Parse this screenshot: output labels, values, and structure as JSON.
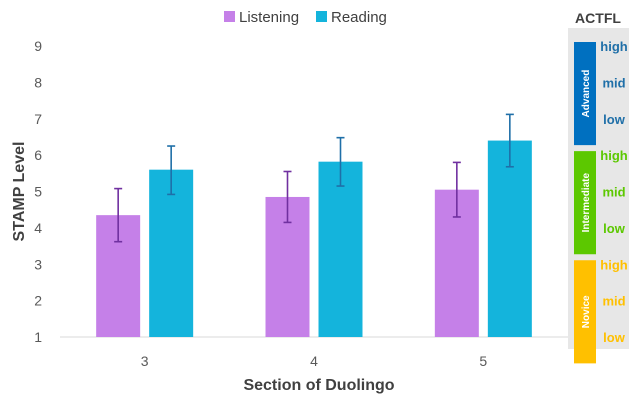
{
  "chart_data": {
    "type": "bar",
    "title": "",
    "xlabel": "Section of Duolingo",
    "ylabel": "STAMP Level",
    "categories": [
      "3",
      "4",
      "5"
    ],
    "ylim": [
      1,
      9
    ],
    "yticks": [
      1,
      2,
      3,
      4,
      5,
      6,
      7,
      8,
      9
    ],
    "grid": false,
    "legend_position": "top",
    "series": [
      {
        "name": "Listening",
        "color": "#c580e8",
        "errorbar_color": "#7030a0",
        "values": [
          4.35,
          4.85,
          5.05
        ],
        "error_low": [
          3.62,
          4.15,
          4.3
        ],
        "error_high": [
          5.08,
          5.55,
          5.8
        ]
      },
      {
        "name": "Reading",
        "color": "#14b4dc",
        "errorbar_color": "#1f6fa8",
        "values": [
          5.6,
          5.82,
          6.4
        ],
        "error_low": [
          4.92,
          5.15,
          5.68
        ],
        "error_high": [
          6.25,
          6.48,
          7.12
        ]
      }
    ],
    "actfl_scale": {
      "title": "ACTFL",
      "bands": [
        {
          "name": "Advanced",
          "color": "#0070c0",
          "text_color": "#1f6fa8",
          "levels": [
            "high",
            "mid",
            "low"
          ]
        },
        {
          "name": "Intermediate",
          "color": "#5cc800",
          "text_color": "#5cc800",
          "levels": [
            "high",
            "mid",
            "low"
          ]
        },
        {
          "name": "Novice",
          "color": "#ffc000",
          "text_color": "#ffc000",
          "levels": [
            "high",
            "mid",
            "low"
          ]
        }
      ]
    }
  }
}
